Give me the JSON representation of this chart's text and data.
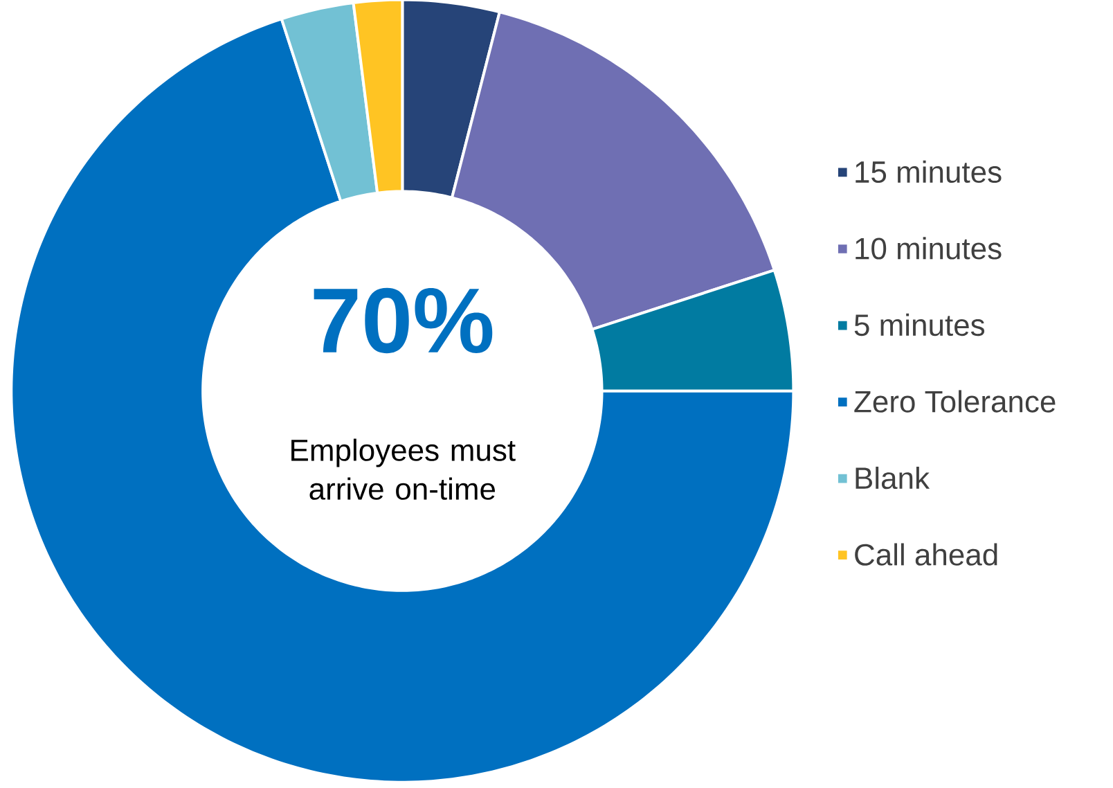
{
  "chart_data": {
    "type": "donut",
    "categories": [
      "15 minutes",
      "10 minutes",
      "5 minutes",
      "Zero Tolerance",
      "Blank",
      "Call ahead"
    ],
    "values": [
      4,
      16,
      5,
      70,
      3,
      2
    ],
    "colors": [
      "#264478",
      "#6f6fb3",
      "#017ba1",
      "#0070c0",
      "#72c1d4",
      "#ffc423"
    ],
    "annotations": [
      "70%",
      "Employees must arrive on-time"
    ],
    "legend": "right"
  }
}
